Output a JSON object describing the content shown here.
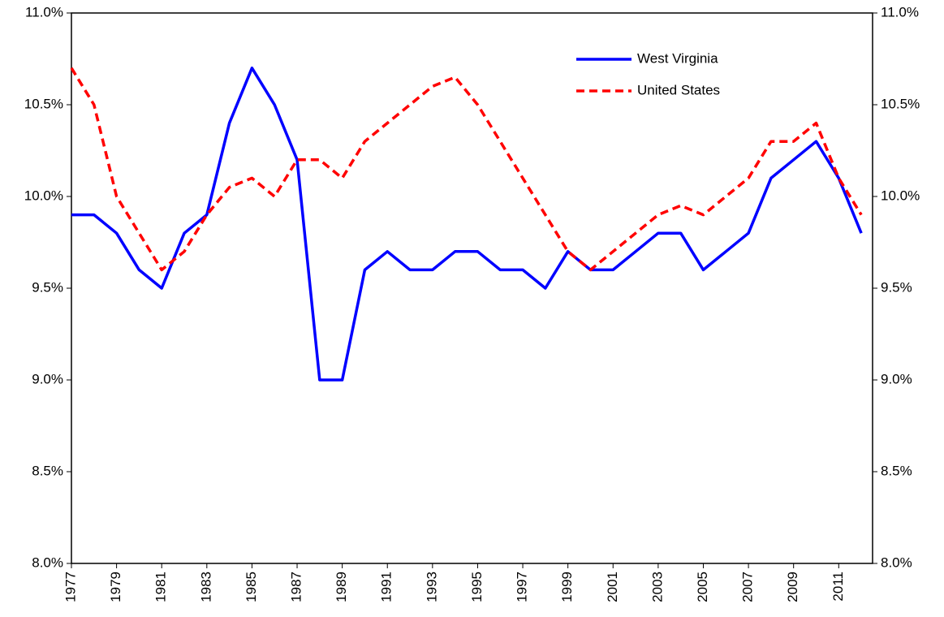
{
  "chart_data": {
    "type": "line",
    "x": [
      1977,
      1978,
      1979,
      1980,
      1981,
      1982,
      1983,
      1984,
      1985,
      1986,
      1987,
      1988,
      1989,
      1990,
      1991,
      1992,
      1993,
      1994,
      1995,
      1996,
      1997,
      1998,
      1999,
      2000,
      2001,
      2002,
      2003,
      2004,
      2005,
      2006,
      2007,
      2008,
      2009,
      2010,
      2011,
      2012
    ],
    "series": [
      {
        "name": "West Virginia",
        "color": "#0000ff",
        "dash": false,
        "values": [
          9.9,
          9.9,
          9.8,
          9.6,
          9.5,
          9.8,
          9.9,
          10.4,
          10.7,
          10.5,
          10.2,
          9.0,
          9.0,
          9.6,
          9.7,
          9.6,
          9.6,
          9.7,
          9.7,
          9.6,
          9.6,
          9.5,
          9.7,
          9.6,
          9.6,
          9.7,
          9.8,
          9.8,
          9.6,
          9.7,
          9.8,
          10.1,
          10.2,
          10.3,
          10.1,
          9.8
        ]
      },
      {
        "name": "United States",
        "color": "#ff0000",
        "dash": true,
        "values": [
          10.7,
          10.5,
          10.0,
          9.8,
          9.6,
          9.7,
          9.9,
          10.05,
          10.1,
          10.0,
          10.2,
          10.2,
          10.1,
          10.3,
          10.4,
          10.5,
          10.6,
          10.65,
          10.5,
          10.3,
          10.1,
          9.9,
          9.7,
          9.6,
          9.7,
          9.8,
          9.9,
          9.95,
          9.9,
          10.0,
          10.1,
          10.3,
          10.3,
          10.4,
          10.1,
          9.9
        ]
      }
    ],
    "xlim": [
      1977,
      2012.5
    ],
    "xticks": [
      1977,
      1979,
      1981,
      1983,
      1985,
      1987,
      1989,
      1991,
      1993,
      1995,
      1997,
      1999,
      2001,
      2003,
      2005,
      2007,
      2009,
      2011
    ],
    "ylim": [
      8.0,
      11.0
    ],
    "yticks": [
      {
        "value": 8.0,
        "label": "8.0%"
      },
      {
        "value": 8.5,
        "label": "8.5%"
      },
      {
        "value": 9.0,
        "label": "9.0%"
      },
      {
        "value": 9.5,
        "label": "9.5%"
      },
      {
        "value": 10.0,
        "label": "10.0%"
      },
      {
        "value": 10.5,
        "label": "10.5%"
      },
      {
        "value": 11.0,
        "label": "11.0%"
      }
    ],
    "y2lim": [
      8.0,
      11.0
    ],
    "y2ticks": [
      {
        "value": 8.0,
        "label": "8.0%"
      },
      {
        "value": 8.5,
        "label": "8.5%"
      },
      {
        "value": 9.0,
        "label": "9.0%"
      },
      {
        "value": 9.5,
        "label": "9.5%"
      },
      {
        "value": 10.0,
        "label": "10.0%"
      },
      {
        "value": 10.5,
        "label": "10.5%"
      },
      {
        "value": 11.0,
        "label": "11.0%"
      }
    ],
    "grid": false,
    "legend": "upper right"
  }
}
